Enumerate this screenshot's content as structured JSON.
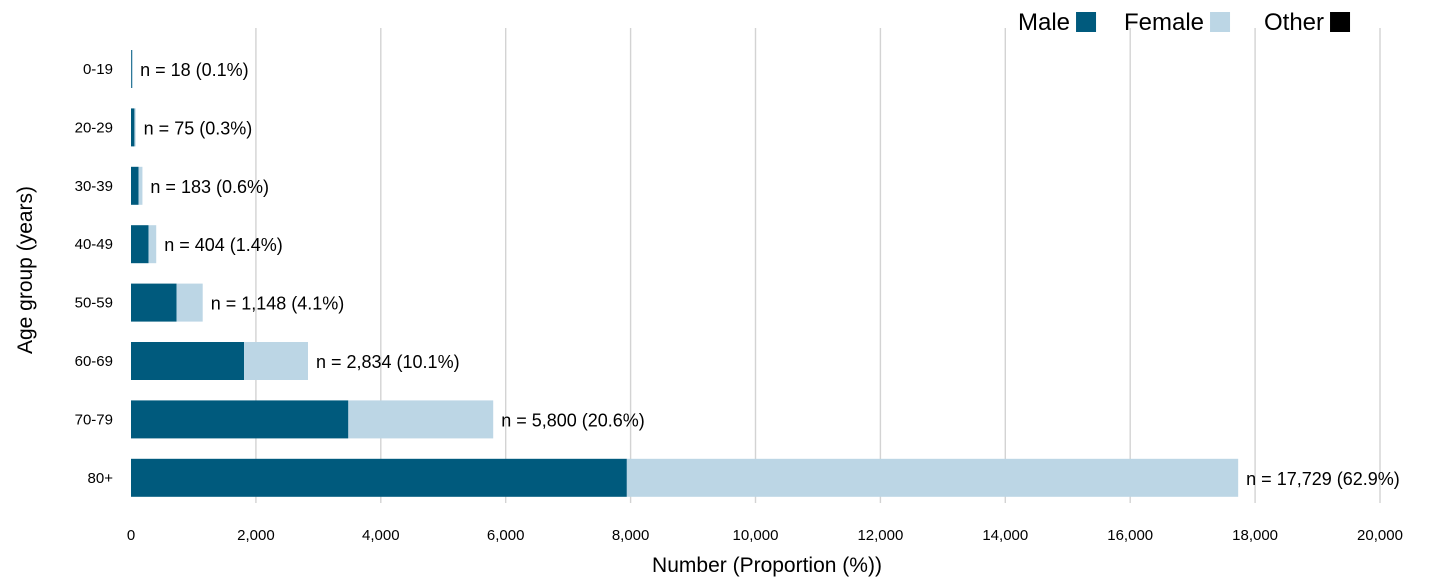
{
  "chart_data": {
    "type": "bar",
    "orientation": "horizontal",
    "stacked": true,
    "categories": [
      "0-19",
      "20-29",
      "30-39",
      "40-49",
      "50-59",
      "60-69",
      "70-79",
      "80+"
    ],
    "series": [
      {
        "name": "Male",
        "color": "#005a7d",
        "values": [
          12,
          55,
          120,
          280,
          730,
          1810,
          3480,
          7940
        ]
      },
      {
        "name": "Female",
        "color": "#bcd6e5",
        "values": [
          6,
          20,
          63,
          124,
          418,
          1024,
          2320,
          9789
        ]
      },
      {
        "name": "Other",
        "color": "#000000",
        "values": [
          0,
          0,
          0,
          0,
          0,
          0,
          0,
          0
        ]
      }
    ],
    "data_labels": [
      "n = 18 (0.1%)",
      "n = 75 (0.3%)",
      "n = 183 (0.6%)",
      "n = 404 (1.4%)",
      "n = 1,148 (4.1%)",
      "n = 2,834 (10.1%)",
      "n = 5,800 (20.6%)",
      "n = 17,729 (62.9%)"
    ],
    "totals": [
      18,
      75,
      183,
      404,
      1148,
      2834,
      5800,
      17729
    ],
    "xlabel": "Number (Proportion (%))",
    "ylabel": "Age group (years)",
    "xlim": [
      0,
      20000
    ],
    "xticks": [
      0,
      2000,
      4000,
      6000,
      8000,
      10000,
      12000,
      14000,
      16000,
      18000,
      20000
    ],
    "xtick_labels": [
      "0",
      "2,000",
      "4,000",
      "6,000",
      "8,000",
      "10,000",
      "12,000",
      "14,000",
      "16,000",
      "18,000",
      "20,000"
    ],
    "grid": "vertical",
    "legend_position": "top-right"
  }
}
